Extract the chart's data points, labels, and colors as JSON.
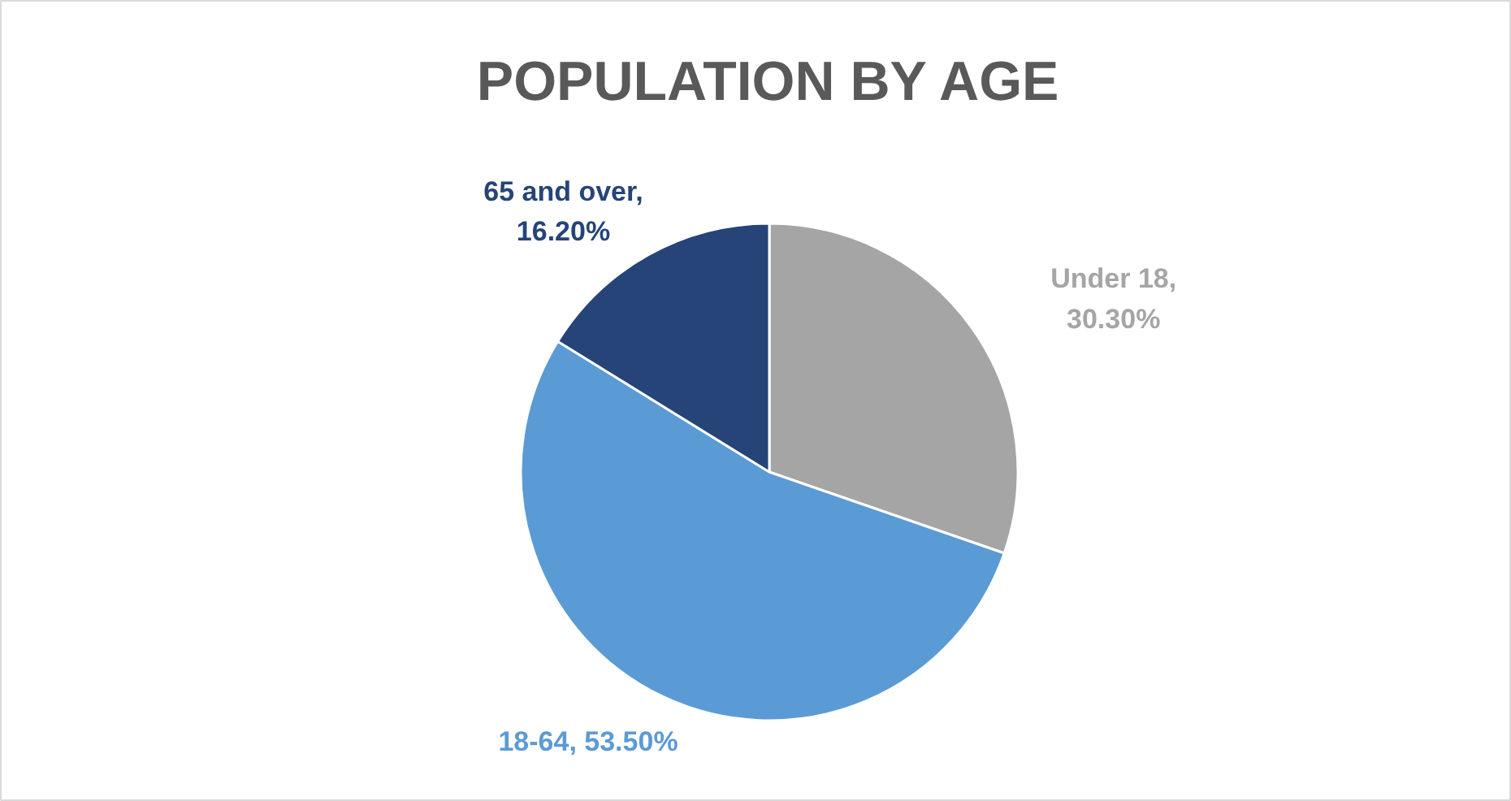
{
  "chart_data": {
    "type": "pie",
    "title": "POPULATION BY AGE",
    "categories": [
      "Under 18",
      "18-64",
      "65 and over"
    ],
    "values": [
      30.3,
      53.5,
      16.2
    ],
    "value_labels": [
      ", 30.30%",
      ", 53.50%",
      ", 16.20%"
    ],
    "colors": [
      "#a5a5a5",
      "#5b9bd5",
      "#264478"
    ],
    "legend": false
  }
}
